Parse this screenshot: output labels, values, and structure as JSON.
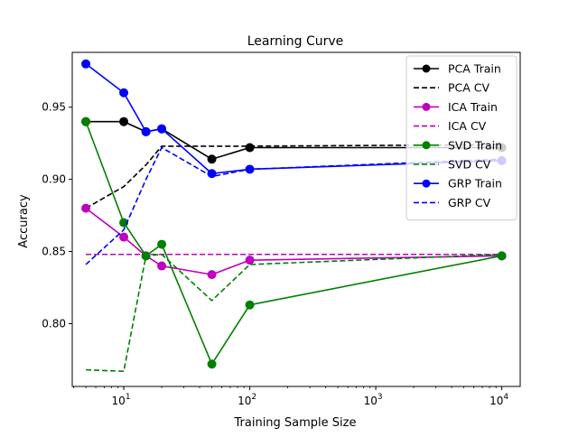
{
  "chart_data": {
    "type": "line",
    "title": "Learning Curve",
    "xlabel": "Training Sample Size",
    "ylabel": "Accuracy",
    "x_scale": "log",
    "xlim": [
      3.9,
      14000
    ],
    "ylim": [
      0.7565,
      0.988
    ],
    "grid": false,
    "legend_position": "top-right",
    "x_ticks": [
      {
        "value": 10,
        "label": "10",
        "exp": "1"
      },
      {
        "value": 100,
        "label": "10",
        "exp": "2"
      },
      {
        "value": 1000,
        "label": "10",
        "exp": "3"
      },
      {
        "value": 10000,
        "label": "10",
        "exp": "4"
      }
    ],
    "y_ticks": [
      {
        "value": 0.8,
        "label": "0.80"
      },
      {
        "value": 0.85,
        "label": "0.85"
      },
      {
        "value": 0.9,
        "label": "0.90"
      },
      {
        "value": 0.95,
        "label": "0.95"
      }
    ],
    "x": [
      5,
      10,
      15,
      20,
      50,
      100,
      10000
    ],
    "series": [
      {
        "name": "PCA Train",
        "color": "#000000",
        "style": "solid",
        "marker": true,
        "values": [
          0.94,
          0.94,
          0.933,
          0.935,
          0.914,
          0.922,
          0.922
        ]
      },
      {
        "name": "PCA CV",
        "color": "#000000",
        "style": "dashed",
        "marker": false,
        "values": [
          0.88,
          0.895,
          0.91,
          0.923,
          0.923,
          0.923,
          0.924
        ]
      },
      {
        "name": "ICA Train",
        "color": "#bf00bf",
        "style": "solid",
        "marker": true,
        "values": [
          0.88,
          0.86,
          0.847,
          0.84,
          0.834,
          0.844,
          0.847
        ]
      },
      {
        "name": "ICA CV",
        "color": "#bf00bf",
        "style": "dashed",
        "marker": false,
        "values": [
          0.848,
          0.848,
          0.848,
          0.848,
          0.848,
          0.848,
          0.848
        ]
      },
      {
        "name": "SVD Train",
        "color": "#008000",
        "style": "solid",
        "marker": true,
        "values": [
          0.94,
          0.87,
          0.847,
          0.855,
          0.772,
          0.813,
          0.847
        ]
      },
      {
        "name": "SVD CV",
        "color": "#008000",
        "style": "dashed",
        "marker": false,
        "values": [
          0.768,
          0.767,
          0.847,
          0.848,
          0.816,
          0.841,
          0.848
        ]
      },
      {
        "name": "GRP Train",
        "color": "#0000ff",
        "style": "solid",
        "marker": true,
        "values": [
          0.98,
          0.96,
          0.933,
          0.935,
          0.904,
          0.907,
          0.913
        ]
      },
      {
        "name": "GRP CV",
        "color": "#0000ff",
        "style": "dashed",
        "marker": false,
        "values": [
          0.841,
          0.865,
          0.9,
          0.922,
          0.902,
          0.907,
          0.914
        ]
      }
    ]
  }
}
